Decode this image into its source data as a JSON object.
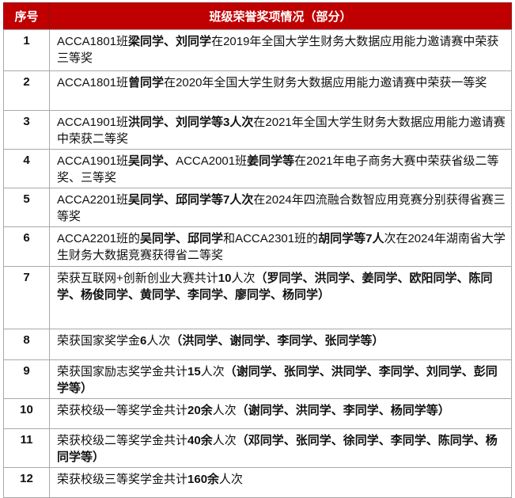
{
  "theme": {
    "header_bg": "#C00000",
    "header_fg": "#FFFFFF",
    "header_divider": "#8E0E0E",
    "border": "#A9A9A9",
    "text": "#111111"
  },
  "header": {
    "serial_label": "序号",
    "title": "班级荣誉奖项情况（部分）"
  },
  "rows": [
    {
      "no": "1",
      "segments": [
        {
          "text": "ACCA1801班",
          "bold": false
        },
        {
          "text": "梁同学、刘同学",
          "bold": true
        },
        {
          "text": "在2019年全国大学生财务大数据应用能力邀请赛中荣获三等奖",
          "bold": false
        }
      ]
    },
    {
      "no": "2",
      "segments": [
        {
          "text": "ACCA1801班",
          "bold": false
        },
        {
          "text": "曾同学",
          "bold": true
        },
        {
          "text": "在2020年全国大学生财务大数据应用能力邀请赛中荣获一等奖",
          "bold": false
        }
      ]
    },
    {
      "no": "3",
      "segments": [
        {
          "text": "ACCA1901班",
          "bold": false
        },
        {
          "text": "洪同学、刘同学等3人次",
          "bold": true
        },
        {
          "text": "在2021年全国大学生财务大数据应用能力邀请赛中荣获二等奖",
          "bold": false
        }
      ]
    },
    {
      "no": "4",
      "segments": [
        {
          "text": "ACCA1901班",
          "bold": false
        },
        {
          "text": "吴同学、",
          "bold": true
        },
        {
          "text": "ACCA2001班",
          "bold": false
        },
        {
          "text": "姜同学等",
          "bold": true
        },
        {
          "text": "在2021年电子商务大赛中荣获省级二等奖、三等奖",
          "bold": false
        }
      ]
    },
    {
      "no": "5",
      "segments": [
        {
          "text": "ACCA2201班",
          "bold": false
        },
        {
          "text": "吴同学、邱同学等7人次",
          "bold": true
        },
        {
          "text": "在2024年四流融合数智应用竞赛分别获得省赛三等奖",
          "bold": false
        }
      ]
    },
    {
      "no": "6",
      "segments": [
        {
          "text": "ACCA2201班的",
          "bold": false
        },
        {
          "text": "吴同学、邱同学",
          "bold": true
        },
        {
          "text": "和ACCA2301班的",
          "bold": false
        },
        {
          "text": "胡同学等7人",
          "bold": true
        },
        {
          "text": "次在2024年湖南省大学生财务大数据竞赛获得省二等奖",
          "bold": false
        }
      ]
    },
    {
      "no": "7",
      "segments": [
        {
          "text": "荣获互联网+创新创业大赛共计",
          "bold": false
        },
        {
          "text": "10",
          "bold": true
        },
        {
          "text": "人次",
          "bold": false
        },
        {
          "text": "（罗同学、洪同学、姜同学、欧阳同学、陈同学、杨俊同学、黄同学、李同学、廖同学、杨同学）",
          "bold": true
        }
      ]
    },
    {
      "no": "8",
      "segments": [
        {
          "text": "荣获国家奖学金",
          "bold": false
        },
        {
          "text": "6",
          "bold": true
        },
        {
          "text": "人次",
          "bold": false
        },
        {
          "text": "（洪同学、谢同学、李同学、张同学等）",
          "bold": true
        }
      ]
    },
    {
      "no": "9",
      "segments": [
        {
          "text": "荣获国家励志奖学金共计",
          "bold": false
        },
        {
          "text": "15",
          "bold": true
        },
        {
          "text": "人次",
          "bold": false
        },
        {
          "text": "（谢同学、张同学、洪同学、李同学、刘同学、彭同学等）",
          "bold": true
        }
      ]
    },
    {
      "no": "10",
      "segments": [
        {
          "text": "荣获校级一等奖学金共计",
          "bold": false
        },
        {
          "text": "20余",
          "bold": true
        },
        {
          "text": "人次",
          "bold": false
        },
        {
          "text": "（谢同学、洪同学、李同学、杨同学等）",
          "bold": true
        }
      ]
    },
    {
      "no": "11",
      "segments": [
        {
          "text": "荣获校级二等奖学金共计",
          "bold": false
        },
        {
          "text": "40余",
          "bold": true
        },
        {
          "text": "人次",
          "bold": false
        },
        {
          "text": "（邓同学、张同学、徐同学、李同学、陈同学、杨同学等）",
          "bold": true
        }
      ]
    },
    {
      "no": "12",
      "segments": [
        {
          "text": "荣获校级三等奖学金共计",
          "bold": false
        },
        {
          "text": "160余",
          "bold": true
        },
        {
          "text": "人次",
          "bold": false
        }
      ]
    }
  ]
}
